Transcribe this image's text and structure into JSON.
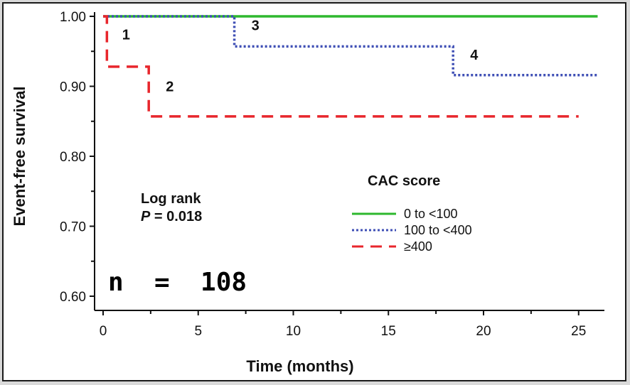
{
  "chart_data": {
    "type": "line",
    "title": "",
    "xlabel": "Time (months)",
    "ylabel": "Event-free survival",
    "xlim": [
      -0.5,
      26.5
    ],
    "ylim": [
      0.6,
      1.0
    ],
    "xticks": [
      0,
      5,
      10,
      15,
      20,
      25
    ],
    "yticks": [
      0.6,
      0.7,
      0.8,
      0.9,
      1.0
    ],
    "xtick_labels": [
      "0",
      "5",
      "10",
      "15",
      "20",
      "25"
    ],
    "ytick_labels": [
      "0.60",
      "0.70",
      "0.80",
      "0.90",
      "1.00"
    ],
    "grid": false,
    "legend_title": "CAC score",
    "series": [
      {
        "name": "0 to <100",
        "color": "#2eb82e",
        "style": "solid",
        "x": [
          0,
          26
        ],
        "y": [
          1.0,
          1.0
        ]
      },
      {
        "name": "100 to <400",
        "color": "#3f4fb5",
        "style": "dotted",
        "x": [
          0,
          6.9,
          6.9,
          18.4,
          18.4,
          26
        ],
        "y": [
          1.0,
          1.0,
          0.957,
          0.957,
          0.916,
          0.916
        ]
      },
      {
        "name": "≥400",
        "color": "#e8262c",
        "style": "dashed",
        "x": [
          0,
          0.2,
          0.2,
          2.4,
          2.4,
          25
        ],
        "y": [
          1.0,
          1.0,
          0.928,
          0.928,
          0.857,
          0.857
        ]
      }
    ],
    "step_labels": [
      {
        "text": "1",
        "x": 1.0,
        "y": 0.967
      },
      {
        "text": "2",
        "x": 3.3,
        "y": 0.893
      },
      {
        "text": "3",
        "x": 7.8,
        "y": 0.98
      },
      {
        "text": "4",
        "x": 19.3,
        "y": 0.938
      }
    ],
    "annotations": {
      "log_rank_line1": "Log rank",
      "log_rank_p": "P",
      "log_rank_value": " = 0.018",
      "n_label": "n  =  108"
    }
  }
}
